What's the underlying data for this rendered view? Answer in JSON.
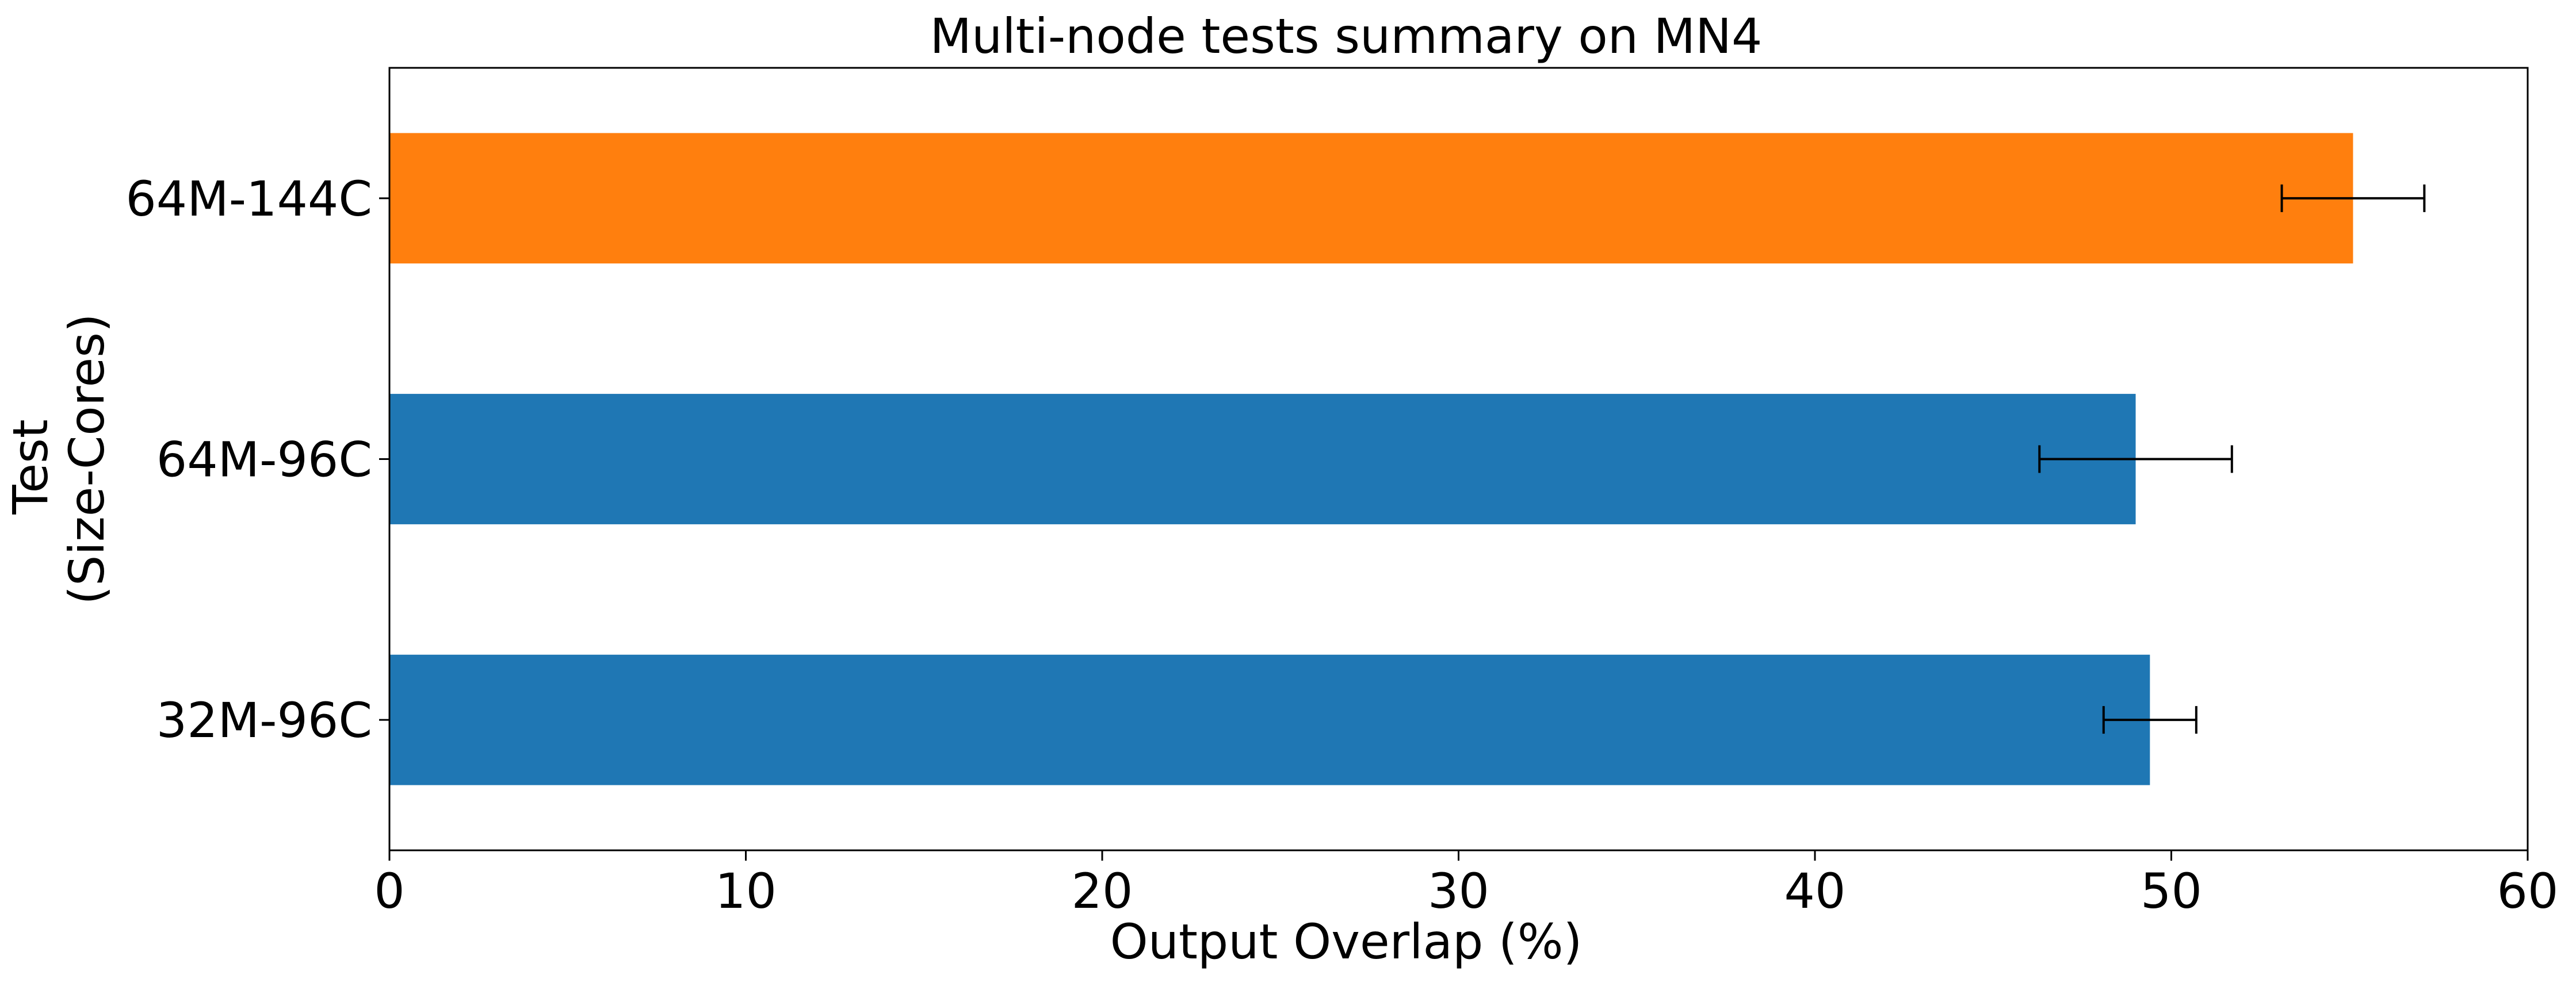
{
  "chart_data": {
    "type": "bar",
    "orientation": "horizontal",
    "title": "Multi-node tests summary on MN4",
    "xlabel": "Output Overlap (%)",
    "ylabel": [
      "Test",
      "(Size-Cores)"
    ],
    "xlim": [
      0,
      60
    ],
    "xticks": [
      0,
      10,
      20,
      30,
      40,
      50,
      60
    ],
    "categories": [
      "32M-96C",
      "64M-96C",
      "64M-144C"
    ],
    "values": [
      49.4,
      49.0,
      55.1
    ],
    "errors": [
      1.3,
      2.7,
      2.0
    ],
    "colors": [
      "#1f77b4",
      "#1f77b4",
      "#ff7f0e"
    ],
    "grid": false,
    "legend": "none"
  }
}
